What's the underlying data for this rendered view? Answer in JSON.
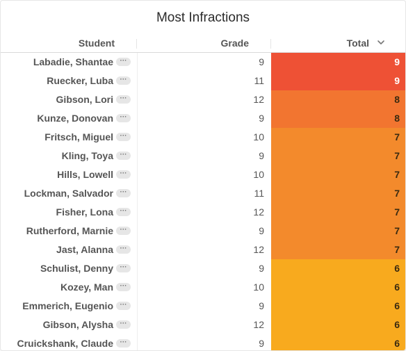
{
  "title": "Most Infractions",
  "columns": {
    "student": "Student",
    "grade": "Grade",
    "total": "Total"
  },
  "sort": {
    "column": "Total",
    "direction": "descending",
    "icon": "chevron-down-icon"
  },
  "more_label": "···",
  "colors": {
    "level_9": "#ee5135",
    "level_8": "#f27530",
    "level_7": "#f38a2c",
    "level_6": "#f8aa1e",
    "text_light": "#ffffff",
    "text_dark": "#3a2a10"
  },
  "rows": [
    {
      "student": "Labadie, Shantae",
      "grade": "9",
      "total": "9"
    },
    {
      "student": "Ruecker, Luba",
      "grade": "11",
      "total": "9"
    },
    {
      "student": "Gibson, Lori",
      "grade": "12",
      "total": "8"
    },
    {
      "student": "Kunze, Donovan",
      "grade": "9",
      "total": "8"
    },
    {
      "student": "Fritsch, Miguel",
      "grade": "10",
      "total": "7"
    },
    {
      "student": "Kling, Toya",
      "grade": "9",
      "total": "7"
    },
    {
      "student": "Hills, Lowell",
      "grade": "10",
      "total": "7"
    },
    {
      "student": "Lockman, Salvador",
      "grade": "11",
      "total": "7"
    },
    {
      "student": "Fisher, Lona",
      "grade": "12",
      "total": "7"
    },
    {
      "student": "Rutherford, Marnie",
      "grade": "9",
      "total": "7"
    },
    {
      "student": "Jast, Alanna",
      "grade": "12",
      "total": "7"
    },
    {
      "student": "Schulist, Denny",
      "grade": "9",
      "total": "6"
    },
    {
      "student": "Kozey, Man",
      "grade": "10",
      "total": "6"
    },
    {
      "student": "Emmerich, Eugenio",
      "grade": "9",
      "total": "6"
    },
    {
      "student": "Gibson, Alysha",
      "grade": "12",
      "total": "6"
    },
    {
      "student": "Cruickshank, Claude",
      "grade": "9",
      "total": "6"
    }
  ]
}
